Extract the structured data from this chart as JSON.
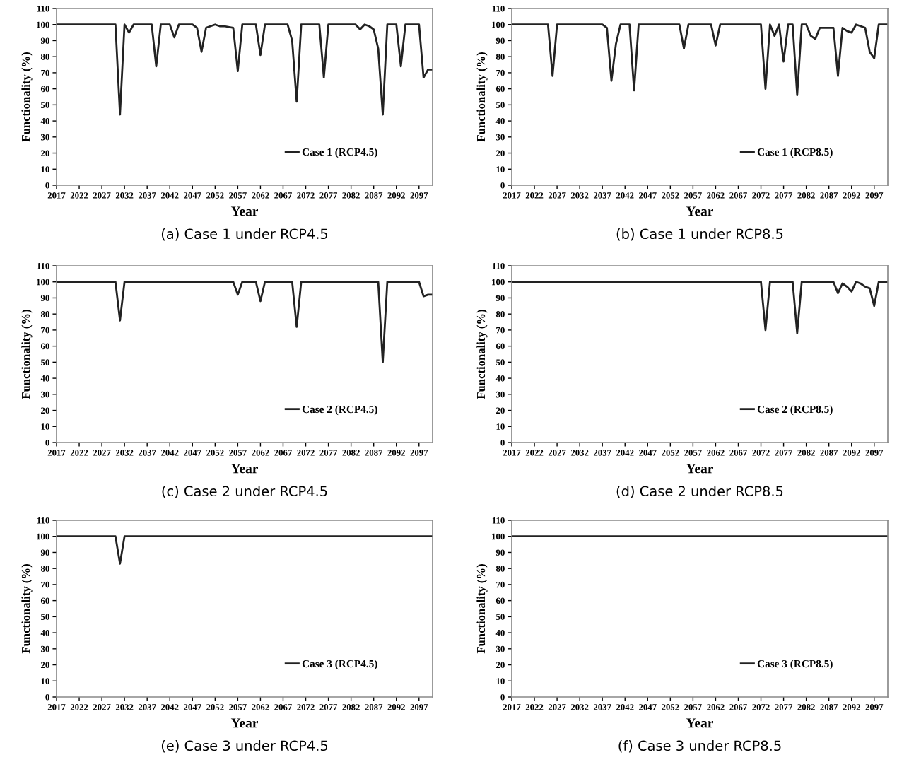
{
  "chart_data": [
    {
      "type": "line",
      "title": "(a) Case 1 under RCP4.5",
      "xlabel": "Year",
      "ylabel": "Functionality (%)",
      "xlim": [
        2017,
        2100
      ],
      "ylim": [
        0,
        110
      ],
      "xticks": [
        2017,
        2022,
        2027,
        2032,
        2037,
        2042,
        2047,
        2052,
        2057,
        2062,
        2067,
        2072,
        2077,
        2082,
        2087,
        2092,
        2097
      ],
      "yticks": [
        0,
        10,
        20,
        30,
        40,
        50,
        60,
        70,
        80,
        90,
        100,
        110
      ],
      "legend": "bottom right",
      "marker": "none",
      "line_style": "solid",
      "series": [
        {
          "name": "Case 1 (RCP4.5)",
          "color": "#222222",
          "x": [
            2017,
            2030,
            2031,
            2032,
            2033,
            2034,
            2038,
            2039,
            2040,
            2042,
            2043,
            2044,
            2047,
            2048,
            2049,
            2050,
            2052,
            2053,
            2054,
            2056,
            2057,
            2058,
            2061,
            2062,
            2063,
            2068,
            2069,
            2070,
            2071,
            2075,
            2076,
            2077,
            2083,
            2084,
            2085,
            2086,
            2087,
            2088,
            2089,
            2090,
            2092,
            2093,
            2094,
            2097,
            2098,
            2099,
            2100
          ],
          "values": [
            100,
            100,
            44,
            100,
            95,
            100,
            100,
            74,
            100,
            100,
            92,
            100,
            100,
            98,
            83,
            98,
            100,
            99,
            99,
            98,
            71,
            100,
            100,
            81,
            100,
            100,
            90,
            52,
            100,
            100,
            67,
            100,
            100,
            97,
            100,
            99,
            97,
            85,
            44,
            100,
            100,
            74,
            100,
            100,
            67,
            72,
            72
          ]
        }
      ]
    },
    {
      "type": "line",
      "title": "(b) Case 1 under RCP8.5",
      "xlabel": "Year",
      "ylabel": "Functionality (%)",
      "xlim": [
        2017,
        2100
      ],
      "ylim": [
        0,
        110
      ],
      "xticks": [
        2017,
        2022,
        2027,
        2032,
        2037,
        2042,
        2047,
        2052,
        2057,
        2062,
        2067,
        2072,
        2077,
        2082,
        2087,
        2092,
        2097
      ],
      "yticks": [
        0,
        10,
        20,
        30,
        40,
        50,
        60,
        70,
        80,
        90,
        100,
        110
      ],
      "legend": "bottom right",
      "marker": "none",
      "line_style": "solid",
      "series": [
        {
          "name": "Case 1 (RCP8.5)",
          "color": "#222222",
          "x": [
            2017,
            2025,
            2026,
            2027,
            2037,
            2038,
            2039,
            2040,
            2041,
            2043,
            2044,
            2045,
            2054,
            2055,
            2056,
            2061,
            2062,
            2063,
            2072,
            2073,
            2074,
            2075,
            2076,
            2077,
            2078,
            2079,
            2080,
            2081,
            2082,
            2083,
            2084,
            2085,
            2088,
            2089,
            2090,
            2091,
            2092,
            2093,
            2094,
            2095,
            2096,
            2097,
            2098,
            2100
          ],
          "values": [
            100,
            100,
            68,
            100,
            100,
            98,
            65,
            88,
            100,
            100,
            59,
            100,
            100,
            85,
            100,
            100,
            87,
            100,
            100,
            60,
            100,
            93,
            100,
            77,
            100,
            100,
            56,
            100,
            100,
            93,
            91,
            98,
            98,
            68,
            98,
            96,
            95,
            100,
            99,
            98,
            83,
            79,
            100,
            100
          ]
        }
      ]
    },
    {
      "type": "line",
      "title": "(c) Case 2 under RCP4.5",
      "xlabel": "Year",
      "ylabel": "Functionality (%)",
      "xlim": [
        2017,
        2100
      ],
      "ylim": [
        0,
        110
      ],
      "xticks": [
        2017,
        2022,
        2027,
        2032,
        2037,
        2042,
        2047,
        2052,
        2057,
        2062,
        2067,
        2072,
        2077,
        2082,
        2087,
        2092,
        2097
      ],
      "yticks": [
        0,
        10,
        20,
        30,
        40,
        50,
        60,
        70,
        80,
        90,
        100,
        110
      ],
      "legend": "bottom right",
      "marker": "none",
      "line_style": "solid",
      "series": [
        {
          "name": "Case 2 (RCP4.5)",
          "color": "#222222",
          "x": [
            2017,
            2030,
            2031,
            2032,
            2056,
            2057,
            2058,
            2061,
            2062,
            2063,
            2069,
            2070,
            2071,
            2088,
            2089,
            2090,
            2097,
            2098,
            2099,
            2100
          ],
          "values": [
            100,
            100,
            76,
            100,
            100,
            92,
            100,
            100,
            88,
            100,
            100,
            72,
            100,
            100,
            50,
            100,
            100,
            91,
            92,
            92
          ]
        }
      ]
    },
    {
      "type": "line",
      "title": "(d) Case 2 under RCP8.5",
      "xlabel": "Year",
      "ylabel": "Functionality (%)",
      "xlim": [
        2017,
        2100
      ],
      "ylim": [
        0,
        110
      ],
      "xticks": [
        2017,
        2022,
        2027,
        2032,
        2037,
        2042,
        2047,
        2052,
        2057,
        2062,
        2067,
        2072,
        2077,
        2082,
        2087,
        2092,
        2097
      ],
      "yticks": [
        0,
        10,
        20,
        30,
        40,
        50,
        60,
        70,
        80,
        90,
        100,
        110
      ],
      "legend": "bottom right",
      "marker": "none",
      "line_style": "solid",
      "series": [
        {
          "name": "Case 2 (RCP8.5)",
          "color": "#222222",
          "x": [
            2017,
            2072,
            2073,
            2074,
            2079,
            2080,
            2081,
            2088,
            2089,
            2090,
            2091,
            2092,
            2093,
            2094,
            2095,
            2096,
            2097,
            2098,
            2100
          ],
          "values": [
            100,
            100,
            70,
            100,
            100,
            68,
            100,
            100,
            93,
            99,
            97,
            94,
            100,
            99,
            97,
            96,
            85,
            100,
            100
          ]
        }
      ]
    },
    {
      "type": "line",
      "title": "(e) Case 3 under RCP4.5",
      "xlabel": "Year",
      "ylabel": "Functionality (%)",
      "xlim": [
        2017,
        2100
      ],
      "ylim": [
        0,
        110
      ],
      "xticks": [
        2017,
        2022,
        2027,
        2032,
        2037,
        2042,
        2047,
        2052,
        2057,
        2062,
        2067,
        2072,
        2077,
        2082,
        2087,
        2092,
        2097
      ],
      "yticks": [
        0,
        10,
        20,
        30,
        40,
        50,
        60,
        70,
        80,
        90,
        100,
        110
      ],
      "legend": "bottom right",
      "marker": "none",
      "line_style": "solid",
      "series": [
        {
          "name": "Case 3 (RCP4.5)",
          "color": "#222222",
          "x": [
            2017,
            2030,
            2031,
            2032,
            2100
          ],
          "values": [
            100,
            100,
            83,
            100,
            100
          ]
        }
      ]
    },
    {
      "type": "line",
      "title": "(f) Case 3 under RCP8.5",
      "xlabel": "Year",
      "ylabel": "Functionality (%)",
      "xlim": [
        2017,
        2100
      ],
      "ylim": [
        0,
        110
      ],
      "xticks": [
        2017,
        2022,
        2027,
        2032,
        2037,
        2042,
        2047,
        2052,
        2057,
        2062,
        2067,
        2072,
        2077,
        2082,
        2087,
        2092,
        2097
      ],
      "yticks": [
        0,
        10,
        20,
        30,
        40,
        50,
        60,
        70,
        80,
        90,
        100,
        110
      ],
      "legend": "bottom right",
      "marker": "none",
      "line_style": "solid",
      "series": [
        {
          "name": "Case 3 (RCP8.5)",
          "color": "#222222",
          "x": [
            2017,
            2100
          ],
          "values": [
            100,
            100
          ]
        }
      ]
    }
  ]
}
